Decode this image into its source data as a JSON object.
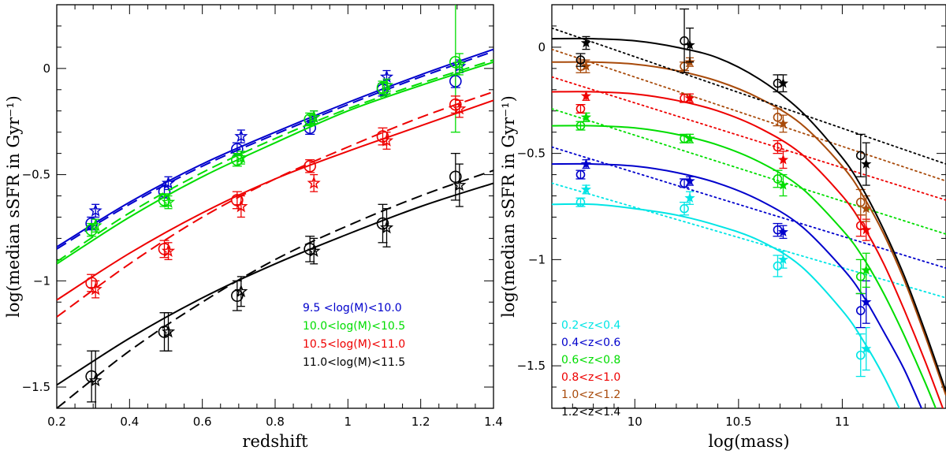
{
  "chart_data": [
    {
      "type": "scatter",
      "panel": "left",
      "xlabel": "redshift",
      "ylabel": "log(median sSFR in Gyr⁻¹)",
      "xlim": [
        0.2,
        1.4
      ],
      "ylim": [
        -1.6,
        0.3
      ],
      "xticks": [
        0.2,
        0.4,
        0.6,
        0.8,
        1,
        1.2,
        1.4
      ],
      "xtick_labels": [
        "0.2",
        "0.4",
        "0.6",
        "0.8",
        "1",
        "1.2",
        "1.4"
      ],
      "yticks": [
        -1.5,
        -1,
        -0.5,
        0
      ],
      "ytick_labels": [
        "−1.5",
        "−1",
        "−0.5",
        "0"
      ],
      "legend_position": "bottom-right",
      "series": [
        {
          "name": "9.5  <log(M)<10.0",
          "color": "#0000cc",
          "x": [
            0.3,
            0.5,
            0.7,
            0.9,
            1.1,
            1.3
          ],
          "circles": [
            -0.73,
            -0.58,
            -0.38,
            -0.28,
            -0.1,
            -0.06
          ],
          "circle_err": [
            0.03,
            0.03,
            0.03,
            0.03,
            0.03,
            0.03
          ],
          "stars": [
            -0.67,
            -0.54,
            -0.32,
            -0.23,
            -0.04,
            0.01
          ],
          "star_err": [
            0.03,
            0.03,
            0.03,
            0.03,
            0.03,
            0.03
          ],
          "fit_solid": {
            "x": [
              0.2,
              0.4,
              0.6,
              0.8,
              1.0,
              1.2,
              1.4
            ],
            "y": [
              -0.84,
              -0.63,
              -0.45,
              -0.3,
              -0.16,
              -0.03,
              0.09
            ]
          },
          "fit_dashed": {
            "x": [
              0.2,
              0.4,
              0.6,
              0.8,
              1.0,
              1.2,
              1.4
            ],
            "y": [
              -0.85,
              -0.64,
              -0.46,
              -0.31,
              -0.17,
              -0.04,
              0.08
            ]
          }
        },
        {
          "name": "10.0<log(M)<10.5",
          "color": "#00dd00",
          "x": [
            0.3,
            0.5,
            0.7,
            0.9,
            1.1,
            1.3
          ],
          "circles": [
            -0.76,
            -0.62,
            -0.43,
            -0.24,
            -0.09,
            0.03
          ],
          "circle_err": [
            0.03,
            0.03,
            0.03,
            0.03,
            0.03,
            0.33
          ],
          "stars": [
            -0.74,
            -0.63,
            -0.42,
            -0.23,
            -0.08,
            0.02
          ],
          "star_err": [
            0.03,
            0.03,
            0.03,
            0.03,
            0.03,
            0.05
          ],
          "fit_solid": {
            "x": [
              0.2,
              0.4,
              0.6,
              0.8,
              1.0,
              1.2,
              1.4
            ],
            "y": [
              -0.92,
              -0.7,
              -0.51,
              -0.35,
              -0.2,
              -0.08,
              0.03
            ]
          },
          "fit_dashed": {
            "x": [
              0.2,
              0.4,
              0.6,
              0.8,
              1.0,
              1.2,
              1.4
            ],
            "y": [
              -0.91,
              -0.68,
              -0.49,
              -0.33,
              -0.19,
              -0.07,
              0.04
            ]
          }
        },
        {
          "name": "10.5<log(M)<11.0",
          "color": "#ee0000",
          "x": [
            0.3,
            0.5,
            0.7,
            0.9,
            1.1,
            1.3
          ],
          "circles": [
            -1.01,
            -0.85,
            -0.62,
            -0.46,
            -0.32,
            -0.17
          ],
          "circle_err": [
            0.04,
            0.04,
            0.04,
            0.03,
            0.04,
            0.04
          ],
          "stars": [
            -1.04,
            -0.86,
            -0.65,
            -0.54,
            -0.34,
            -0.19
          ],
          "star_err": [
            0.04,
            0.04,
            0.05,
            0.04,
            0.04,
            0.04
          ],
          "fit_solid": {
            "x": [
              0.2,
              0.4,
              0.6,
              0.8,
              1.0,
              1.2,
              1.4
            ],
            "y": [
              -1.09,
              -0.87,
              -0.68,
              -0.52,
              -0.39,
              -0.27,
              -0.15
            ]
          },
          "fit_dashed": {
            "x": [
              0.2,
              0.4,
              0.6,
              0.8,
              1.0,
              1.2,
              1.4
            ],
            "y": [
              -1.17,
              -0.92,
              -0.7,
              -0.52,
              -0.37,
              -0.23,
              -0.11
            ]
          }
        },
        {
          "name": "11.0<log(M)<11.5",
          "color": "#000000",
          "x": [
            0.3,
            0.5,
            0.7,
            0.9,
            1.1,
            1.3
          ],
          "circles": [
            -1.45,
            -1.24,
            -1.07,
            -0.85,
            -0.73,
            -0.51
          ],
          "circle_err": [
            0.12,
            0.09,
            0.07,
            0.06,
            0.09,
            0.11
          ],
          "stars": [
            -1.47,
            -1.24,
            -1.05,
            -0.86,
            -0.75,
            -0.55
          ],
          "star_err": [
            0.14,
            0.09,
            0.07,
            0.06,
            0.09,
            0.1
          ],
          "fit_solid": {
            "x": [
              0.2,
              0.4,
              0.6,
              0.8,
              1.0,
              1.2,
              1.4
            ],
            "y": [
              -1.49,
              -1.27,
              -1.08,
              -0.92,
              -0.78,
              -0.65,
              -0.54
            ]
          },
          "fit_dashed": {
            "x": [
              0.2,
              0.4,
              0.6,
              0.8,
              1.0,
              1.2,
              1.4
            ],
            "y": [
              -1.6,
              -1.33,
              -1.1,
              -0.9,
              -0.74,
              -0.6,
              -0.48
            ]
          }
        }
      ]
    },
    {
      "type": "scatter",
      "panel": "right",
      "xlabel": "log(mass)",
      "ylabel": "log(median sSFR in Gyr⁻¹)",
      "xlim": [
        9.6,
        11.5
      ],
      "ylim": [
        -1.7,
        0.2
      ],
      "xticks": [
        10,
        10.5,
        11
      ],
      "xtick_labels": [
        "10",
        "10.5",
        "11"
      ],
      "yticks": [
        -1.5,
        -1,
        -0.5,
        0
      ],
      "ytick_labels": [
        "−1.5",
        "−1",
        "−0.5",
        "0"
      ],
      "legend_position": "bottom-left",
      "series": [
        {
          "name": "0.2<z<0.4",
          "color": "#00e5e5",
          "x": [
            9.75,
            10.25,
            10.7,
            11.1
          ],
          "circles": [
            -0.73,
            -0.76,
            -1.03,
            -1.45
          ],
          "circle_err": [
            0.02,
            0.03,
            0.05,
            0.1
          ],
          "stars": [
            -0.67,
            -0.71,
            -1.0,
            -1.42
          ],
          "star_err": [
            0.02,
            0.03,
            0.04,
            0.1
          ],
          "curve": {
            "x": [
              9.6,
              9.8,
              10.0,
              10.2,
              10.4,
              10.6,
              10.8,
              11.0,
              11.1,
              11.2,
              11.3,
              11.4
            ],
            "y": [
              -0.74,
              -0.74,
              -0.76,
              -0.79,
              -0.84,
              -0.91,
              -1.03,
              -1.24,
              -1.38,
              -1.55,
              -1.75,
              -1.95
            ]
          },
          "dotted": {
            "x": [
              9.6,
              11.5
            ],
            "y": [
              -0.64,
              -1.18
            ]
          }
        },
        {
          "name": "0.4<z<0.6",
          "color": "#0000cc",
          "x": [
            9.75,
            10.25,
            10.7,
            11.1
          ],
          "circles": [
            -0.6,
            -0.64,
            -0.86,
            -1.24
          ],
          "circle_err": [
            0.02,
            0.02,
            0.03,
            0.08
          ],
          "stars": [
            -0.55,
            -0.63,
            -0.87,
            -1.2
          ],
          "star_err": [
            0.02,
            0.02,
            0.03,
            0.1
          ],
          "curve": {
            "x": [
              9.6,
              9.8,
              10.0,
              10.2,
              10.4,
              10.6,
              10.8,
              11.0,
              11.1,
              11.2,
              11.3,
              11.4,
              11.45
            ],
            "y": [
              -0.55,
              -0.55,
              -0.56,
              -0.59,
              -0.64,
              -0.72,
              -0.84,
              -1.04,
              -1.17,
              -1.34,
              -1.52,
              -1.74,
              -1.85
            ]
          },
          "dotted": {
            "x": [
              9.6,
              11.5
            ],
            "y": [
              -0.47,
              -1.04
            ]
          }
        },
        {
          "name": "0.6<z<0.8",
          "color": "#00dd00",
          "x": [
            9.75,
            10.25,
            10.7,
            11.1
          ],
          "circles": [
            -0.37,
            -0.43,
            -0.62,
            -1.08
          ],
          "circle_err": [
            0.02,
            0.02,
            0.04,
            0.08
          ],
          "stars": [
            -0.33,
            -0.43,
            -0.65,
            -1.05
          ],
          "star_err": [
            0.02,
            0.02,
            0.05,
            0.08
          ],
          "curve": {
            "x": [
              9.6,
              9.8,
              10.0,
              10.2,
              10.4,
              10.6,
              10.8,
              11.0,
              11.1,
              11.2,
              11.3,
              11.4,
              11.5
            ],
            "y": [
              -0.37,
              -0.37,
              -0.38,
              -0.41,
              -0.46,
              -0.54,
              -0.66,
              -0.86,
              -0.99,
              -1.16,
              -1.36,
              -1.58,
              -1.82
            ]
          },
          "dotted": {
            "x": [
              9.6,
              11.5
            ],
            "y": [
              -0.29,
              -0.88
            ]
          }
        },
        {
          "name": "0.8<z<1.0",
          "color": "#ee0000",
          "x": [
            9.75,
            10.25,
            10.7,
            11.1
          ],
          "circles": [
            -0.29,
            -0.24,
            -0.47,
            -0.84
          ],
          "circle_err": [
            0.02,
            0.02,
            0.03,
            0.05
          ],
          "stars": [
            -0.23,
            -0.24,
            -0.53,
            -0.86
          ],
          "star_err": [
            0.02,
            0.02,
            0.04,
            0.05
          ],
          "curve": {
            "x": [
              9.6,
              9.8,
              10.0,
              10.2,
              10.4,
              10.6,
              10.8,
              11.0,
              11.1,
              11.2,
              11.3,
              11.4,
              11.5
            ],
            "y": [
              -0.21,
              -0.21,
              -0.22,
              -0.25,
              -0.3,
              -0.38,
              -0.5,
              -0.7,
              -0.84,
              -1.02,
              -1.24,
              -1.48,
              -1.74
            ]
          },
          "dotted": {
            "x": [
              9.6,
              11.5
            ],
            "y": [
              -0.14,
              -0.72
            ]
          }
        },
        {
          "name": "1.0<z<1.2",
          "color": "#a84a0a",
          "x": [
            9.75,
            10.25,
            10.7,
            11.1
          ],
          "circles": [
            -0.09,
            -0.09,
            -0.33,
            -0.73
          ],
          "circle_err": [
            0.03,
            0.02,
            0.04,
            0.06
          ],
          "stars": [
            -0.09,
            -0.07,
            -0.36,
            -0.76
          ],
          "star_err": [
            0.03,
            0.02,
            0.04,
            0.06
          ],
          "curve": {
            "x": [
              9.6,
              9.8,
              10.0,
              10.2,
              10.4,
              10.6,
              10.8,
              11.0,
              11.1,
              11.2,
              11.3,
              11.4,
              11.5
            ],
            "y": [
              -0.07,
              -0.07,
              -0.08,
              -0.11,
              -0.16,
              -0.24,
              -0.36,
              -0.56,
              -0.7,
              -0.88,
              -1.1,
              -1.36,
              -1.64
            ]
          },
          "dotted": {
            "x": [
              9.6,
              11.5
            ],
            "y": [
              -0.01,
              -0.63
            ]
          }
        },
        {
          "name": "1.2<z<1.4",
          "color": "#000000",
          "x": [
            9.75,
            10.25,
            10.7,
            11.1
          ],
          "circles": [
            -0.06,
            0.03,
            -0.17,
            -0.51
          ],
          "circle_err": [
            0.03,
            0.15,
            0.04,
            0.1
          ],
          "stars": [
            0.02,
            0.01,
            -0.17,
            -0.55
          ],
          "star_err": [
            0.03,
            0.08,
            0.04,
            0.1
          ],
          "curve": {
            "x": [
              9.6,
              9.8,
              10.0,
              10.2,
              10.4,
              10.6,
              10.8,
              11.0,
              11.1,
              11.2,
              11.3,
              11.4,
              11.5
            ],
            "y": [
              0.04,
              0.04,
              0.03,
              0.0,
              -0.05,
              -0.15,
              -0.3,
              -0.52,
              -0.67,
              -0.86,
              -1.08,
              -1.34,
              -1.62
            ]
          },
          "dotted": {
            "x": [
              9.6,
              11.5
            ],
            "y": [
              0.09,
              -0.55
            ]
          }
        }
      ]
    }
  ]
}
